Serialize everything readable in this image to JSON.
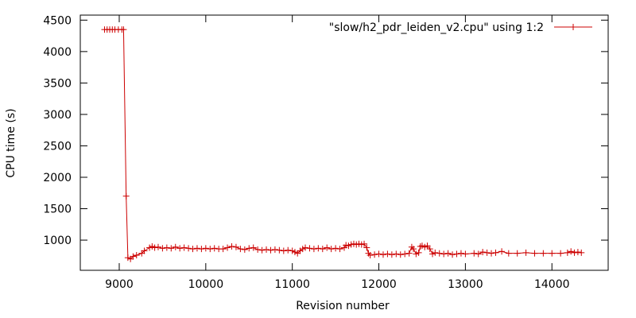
{
  "chart_data": {
    "type": "line",
    "xlabel": "Revision number",
    "ylabel": "CPU time (s)",
    "xlim": [
      8550,
      14650
    ],
    "ylim": [
      520,
      4580
    ],
    "xticks": [
      9000,
      10000,
      11000,
      12000,
      13000,
      14000
    ],
    "yticks": [
      1000,
      1500,
      2000,
      2500,
      3000,
      3500,
      4000,
      4500
    ],
    "grid": false,
    "legend_position": "top-right",
    "series": [
      {
        "name": "\"slow/h2_pdr_leiden_v2.cpu\" using 1:2",
        "color": "#cc0000",
        "marker": "plus",
        "points": [
          [
            8830,
            4350
          ],
          [
            8860,
            4350
          ],
          [
            8890,
            4350
          ],
          [
            8920,
            4350
          ],
          [
            8950,
            4350
          ],
          [
            8990,
            4350
          ],
          [
            9030,
            4350
          ],
          [
            9050,
            4350
          ],
          [
            9080,
            1700
          ],
          [
            9100,
            720
          ],
          [
            9130,
            700
          ],
          [
            9160,
            740
          ],
          [
            9200,
            760
          ],
          [
            9260,
            790
          ],
          [
            9290,
            830
          ],
          [
            9350,
            880
          ],
          [
            9380,
            900
          ],
          [
            9410,
            880
          ],
          [
            9450,
            890
          ],
          [
            9500,
            870
          ],
          [
            9550,
            880
          ],
          [
            9600,
            870
          ],
          [
            9650,
            890
          ],
          [
            9700,
            870
          ],
          [
            9750,
            880
          ],
          [
            9800,
            870
          ],
          [
            9850,
            860
          ],
          [
            9900,
            870
          ],
          [
            9950,
            860
          ],
          [
            10000,
            870
          ],
          [
            10050,
            860
          ],
          [
            10100,
            870
          ],
          [
            10150,
            860
          ],
          [
            10200,
            860
          ],
          [
            10250,
            880
          ],
          [
            10300,
            900
          ],
          [
            10350,
            890
          ],
          [
            10400,
            860
          ],
          [
            10450,
            850
          ],
          [
            10500,
            870
          ],
          [
            10550,
            880
          ],
          [
            10600,
            850
          ],
          [
            10650,
            840
          ],
          [
            10700,
            850
          ],
          [
            10750,
            840
          ],
          [
            10800,
            850
          ],
          [
            10850,
            840
          ],
          [
            10900,
            830
          ],
          [
            10950,
            840
          ],
          [
            11000,
            830
          ],
          [
            11030,
            810
          ],
          [
            11060,
            790
          ],
          [
            11090,
            830
          ],
          [
            11120,
            860
          ],
          [
            11150,
            880
          ],
          [
            11200,
            870
          ],
          [
            11250,
            860
          ],
          [
            11300,
            870
          ],
          [
            11350,
            860
          ],
          [
            11400,
            880
          ],
          [
            11450,
            860
          ],
          [
            11500,
            870
          ],
          [
            11550,
            860
          ],
          [
            11600,
            880
          ],
          [
            11620,
            920
          ],
          [
            11650,
            910
          ],
          [
            11680,
            930
          ],
          [
            11710,
            940
          ],
          [
            11740,
            930
          ],
          [
            11770,
            940
          ],
          [
            11800,
            930
          ],
          [
            11830,
            940
          ],
          [
            11860,
            880
          ],
          [
            11880,
            790
          ],
          [
            11900,
            760
          ],
          [
            11950,
            770
          ],
          [
            12000,
            780
          ],
          [
            12050,
            770
          ],
          [
            12100,
            780
          ],
          [
            12150,
            770
          ],
          [
            12200,
            780
          ],
          [
            12250,
            770
          ],
          [
            12300,
            780
          ],
          [
            12350,
            790
          ],
          [
            12380,
            890
          ],
          [
            12400,
            860
          ],
          [
            12430,
            780
          ],
          [
            12460,
            800
          ],
          [
            12480,
            900
          ],
          [
            12500,
            910
          ],
          [
            12530,
            890
          ],
          [
            12560,
            910
          ],
          [
            12590,
            860
          ],
          [
            12620,
            780
          ],
          [
            12650,
            800
          ],
          [
            12700,
            790
          ],
          [
            12750,
            780
          ],
          [
            12800,
            790
          ],
          [
            12850,
            770
          ],
          [
            12900,
            780
          ],
          [
            12950,
            790
          ],
          [
            13000,
            780
          ],
          [
            13100,
            790
          ],
          [
            13150,
            780
          ],
          [
            13200,
            810
          ],
          [
            13250,
            800
          ],
          [
            13300,
            790
          ],
          [
            13350,
            800
          ],
          [
            13420,
            820
          ],
          [
            13500,
            790
          ],
          [
            13600,
            790
          ],
          [
            13700,
            800
          ],
          [
            13800,
            790
          ],
          [
            13900,
            790
          ],
          [
            14000,
            790
          ],
          [
            14100,
            790
          ],
          [
            14180,
            800
          ],
          [
            14220,
            820
          ],
          [
            14260,
            800
          ],
          [
            14300,
            810
          ],
          [
            14340,
            800
          ]
        ]
      }
    ]
  }
}
